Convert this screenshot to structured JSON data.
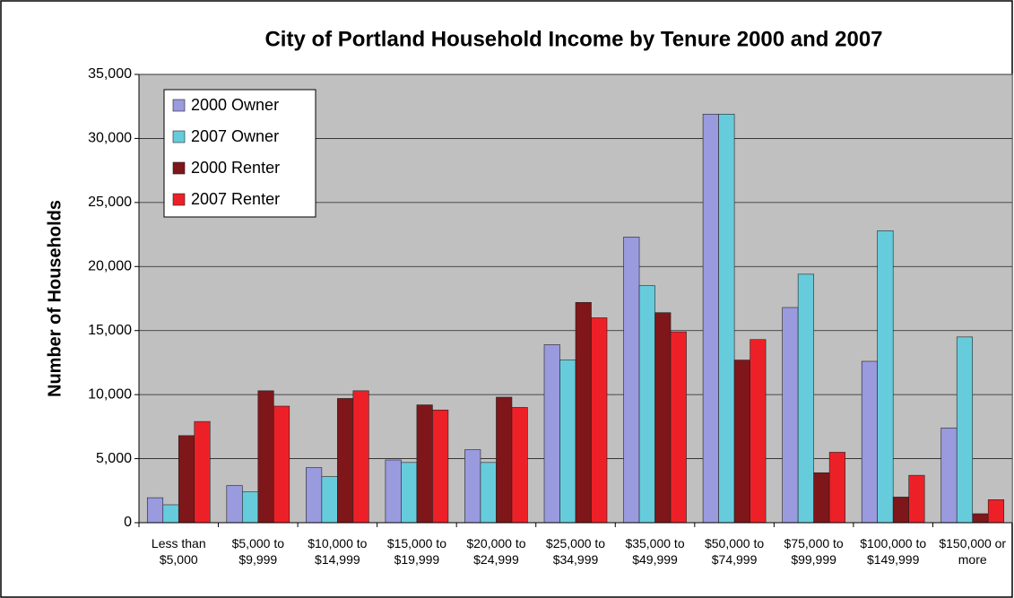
{
  "chart_data": {
    "type": "bar",
    "title": "City of Portland Household Income by Tenure 2000 and 2007",
    "y_label": "Number of Households",
    "categories": [
      "Less than $5,000",
      "$5,000 to $9,999",
      "$10,000 to $14,999",
      "$15,000 to $19,999",
      "$20,000 to $24,999",
      "$25,000 to $34,999",
      "$35,000 to $49,999",
      "$50,000 to $74,999",
      "$75,000 to $99,999",
      "$100,000 to $149,999",
      "$150,000 or more"
    ],
    "series": [
      {
        "name": "2000 Owner",
        "color": "#9a9ade",
        "values": [
          1950,
          2900,
          4300,
          4900,
          5700,
          13900,
          22300,
          31900,
          16800,
          12600,
          7400
        ]
      },
      {
        "name": "2007 Owner",
        "color": "#66ccdc",
        "values": [
          1400,
          2400,
          3600,
          4700,
          4700,
          12700,
          18500,
          31900,
          19400,
          22800,
          14500
        ]
      },
      {
        "name": "2000 Renter",
        "color": "#7f1619",
        "values": [
          6800,
          10300,
          9700,
          9200,
          9800,
          17200,
          16400,
          12700,
          3900,
          2000,
          700
        ]
      },
      {
        "name": "2007 Renter",
        "color": "#ee2027",
        "values": [
          7900,
          9100,
          10300,
          8800,
          9000,
          16000,
          14900,
          14300,
          5500,
          3700,
          1800
        ]
      }
    ],
    "ylim": [
      0,
      35000
    ],
    "yticks": [
      0,
      {
        "value": 5000,
        "label": "5,000"
      },
      {
        "value": 10000,
        "label": "10,000"
      },
      {
        "value": 15000,
        "label": "15,000"
      },
      {
        "value": 20000,
        "label": "20,000"
      },
      {
        "value": 25000,
        "label": "25,000"
      },
      {
        "value": 30000,
        "label": "30,000"
      },
      {
        "value": 35000,
        "label": "35,000"
      }
    ],
    "grid": true,
    "legend": "top-left"
  }
}
